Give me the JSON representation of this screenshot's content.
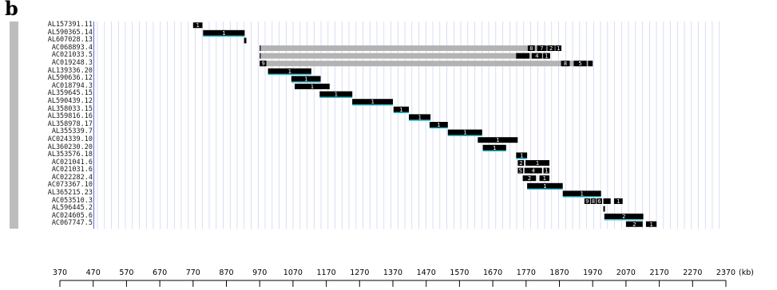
{
  "panel_letter": "b",
  "axis": {
    "unit": "(kb)",
    "min": 370,
    "max": 2370,
    "ticks": [
      370,
      470,
      570,
      670,
      770,
      870,
      970,
      1070,
      1170,
      1270,
      1370,
      1470,
      1570,
      1670,
      1770,
      1870,
      1970,
      2070,
      2170,
      2270,
      2370
    ]
  },
  "colors": {
    "bar": "#000000",
    "gray_bar": "#b3b3b3",
    "underline": "#26c6da",
    "grid": "#c8d0f0",
    "label_axis": "#5b6bd6"
  },
  "clones": [
    {
      "name": "AL157391.11",
      "start": 770,
      "end": 798,
      "kind": "black",
      "underline": false,
      "segments": [
        {
          "s": 770,
          "e": 798,
          "n": "1"
        }
      ]
    },
    {
      "name": "AL590365.14",
      "start": 800,
      "end": 925,
      "kind": "black",
      "underline": true,
      "segments": [
        {
          "s": 800,
          "e": 925,
          "n": "1"
        }
      ]
    },
    {
      "name": "AL607028.13",
      "start": 923,
      "end": 930,
      "kind": "black",
      "underline": false,
      "segments": [
        {
          "s": 923,
          "e": 930,
          "n": ""
        }
      ]
    },
    {
      "name": "AC068893.4",
      "start": 970,
      "end": 1875,
      "kind": "gray",
      "underline": false,
      "segments": [
        {
          "s": 1775,
          "e": 1796,
          "n": "8"
        },
        {
          "s": 1803,
          "e": 1831,
          "n": "7"
        },
        {
          "s": 1834,
          "e": 1856,
          "n": "2"
        },
        {
          "s": 1858,
          "e": 1876,
          "n": "1"
        }
      ]
    },
    {
      "name": "AC021033.5",
      "start": 970,
      "end": 1842,
      "kind": "gray",
      "underline": false,
      "segments": [
        {
          "s": 1740,
          "e": 1780,
          "n": ""
        },
        {
          "s": 1787,
          "e": 1818,
          "n": "4"
        },
        {
          "s": 1821,
          "e": 1842,
          "n": "1"
        }
      ]
    },
    {
      "name": "AC019248.3",
      "start": 970,
      "end": 1970,
      "kind": "gray",
      "underline": false,
      "segments": [
        {
          "s": 971,
          "e": 990,
          "n": "9"
        },
        {
          "s": 1875,
          "e": 1901,
          "n": "8"
        },
        {
          "s": 1913,
          "e": 1952,
          "n": "5"
        },
        {
          "s": 1956,
          "e": 1970,
          "n": ""
        }
      ]
    },
    {
      "name": "AL139336.20",
      "start": 995,
      "end": 1125,
      "kind": "black",
      "underline": true,
      "segments": [
        {
          "s": 995,
          "e": 1125,
          "n": "1"
        }
      ]
    },
    {
      "name": "AL590636.12",
      "start": 1065,
      "end": 1153,
      "kind": "black",
      "underline": true,
      "segments": [
        {
          "s": 1065,
          "e": 1153,
          "n": "1"
        }
      ]
    },
    {
      "name": "AC018794.3",
      "start": 1075,
      "end": 1180,
      "kind": "black",
      "underline": false,
      "segments": [
        {
          "s": 1075,
          "e": 1180,
          "n": "1"
        }
      ]
    },
    {
      "name": "AL359645.15",
      "start": 1150,
      "end": 1248,
      "kind": "black",
      "underline": true,
      "segments": [
        {
          "s": 1150,
          "e": 1248,
          "n": "1"
        }
      ]
    },
    {
      "name": "AL590439.12",
      "start": 1248,
      "end": 1370,
      "kind": "black",
      "underline": true,
      "segments": [
        {
          "s": 1248,
          "e": 1370,
          "n": "1"
        }
      ]
    },
    {
      "name": "AL358033.15",
      "start": 1372,
      "end": 1418,
      "kind": "black",
      "underline": true,
      "segments": [
        {
          "s": 1372,
          "e": 1418,
          "n": "1"
        }
      ]
    },
    {
      "name": "AL359816.16",
      "start": 1418,
      "end": 1483,
      "kind": "black",
      "underline": true,
      "segments": [
        {
          "s": 1418,
          "e": 1483,
          "n": "1"
        }
      ]
    },
    {
      "name": "AL358978.17",
      "start": 1480,
      "end": 1535,
      "kind": "black",
      "underline": true,
      "segments": [
        {
          "s": 1480,
          "e": 1535,
          "n": "1"
        }
      ]
    },
    {
      "name": "AL355339.7",
      "start": 1535,
      "end": 1638,
      "kind": "black",
      "underline": true,
      "segments": [
        {
          "s": 1535,
          "e": 1638,
          "n": "1"
        }
      ]
    },
    {
      "name": "AC024339.10",
      "start": 1625,
      "end": 1745,
      "kind": "black",
      "underline": false,
      "segments": [
        {
          "s": 1625,
          "e": 1745,
          "n": "1"
        }
      ]
    },
    {
      "name": "AL360230.20",
      "start": 1640,
      "end": 1710,
      "kind": "black",
      "underline": true,
      "segments": [
        {
          "s": 1640,
          "e": 1710,
          "n": "1"
        }
      ]
    },
    {
      "name": "AL353576.18",
      "start": 1740,
      "end": 1773,
      "kind": "black",
      "underline": true,
      "segments": [
        {
          "s": 1740,
          "e": 1773,
          "n": "1"
        }
      ]
    },
    {
      "name": "AC021041.6",
      "start": 1745,
      "end": 1840,
      "kind": "black",
      "underline": false,
      "segments": [
        {
          "s": 1745,
          "e": 1764,
          "n": "2"
        },
        {
          "s": 1768,
          "e": 1840,
          "n": "1"
        }
      ]
    },
    {
      "name": "AC021031.6",
      "start": 1745,
      "end": 1840,
      "kind": "black",
      "underline": false,
      "segments": [
        {
          "s": 1745,
          "e": 1761,
          "n": "5"
        },
        {
          "s": 1765,
          "e": 1818,
          "n": "4"
        },
        {
          "s": 1822,
          "e": 1840,
          "n": "1"
        }
      ]
    },
    {
      "name": "AC022282.4",
      "start": 1760,
      "end": 1840,
      "kind": "black",
      "underline": false,
      "segments": [
        {
          "s": 1760,
          "e": 1800,
          "n": "2"
        },
        {
          "s": 1810,
          "e": 1840,
          "n": "1"
        }
      ]
    },
    {
      "name": "AC073367.10",
      "start": 1773,
      "end": 1880,
      "kind": "black",
      "underline": true,
      "segments": [
        {
          "s": 1773,
          "e": 1880,
          "n": "1"
        }
      ]
    },
    {
      "name": "AL365215.23",
      "start": 1880,
      "end": 1995,
      "kind": "black",
      "underline": true,
      "segments": [
        {
          "s": 1880,
          "e": 1995,
          "n": "1"
        }
      ]
    },
    {
      "name": "AC053510.3",
      "start": 1945,
      "end": 2060,
      "kind": "black",
      "underline": false,
      "segments": [
        {
          "s": 1945,
          "e": 1962,
          "n": "9"
        },
        {
          "s": 1964,
          "e": 1980,
          "n": "8"
        },
        {
          "s": 1982,
          "e": 1998,
          "n": "6"
        },
        {
          "s": 2002,
          "e": 2024,
          "n": ""
        },
        {
          "s": 2034,
          "e": 2060,
          "n": "1"
        }
      ]
    },
    {
      "name": "AL596445.2",
      "start": 2002,
      "end": 2007,
      "kind": "black",
      "underline": false,
      "segments": [
        {
          "s": 2002,
          "e": 2007,
          "n": ""
        }
      ]
    },
    {
      "name": "AC024605.6",
      "start": 2005,
      "end": 2122,
      "kind": "black",
      "underline": true,
      "segments": [
        {
          "s": 2005,
          "e": 2122,
          "n": "2"
        }
      ]
    },
    {
      "name": "AC067747.5",
      "start": 2070,
      "end": 2162,
      "kind": "black",
      "underline": false,
      "segments": [
        {
          "s": 2070,
          "e": 2120,
          "n": "2"
        },
        {
          "s": 2130,
          "e": 2162,
          "n": "1"
        }
      ]
    }
  ]
}
